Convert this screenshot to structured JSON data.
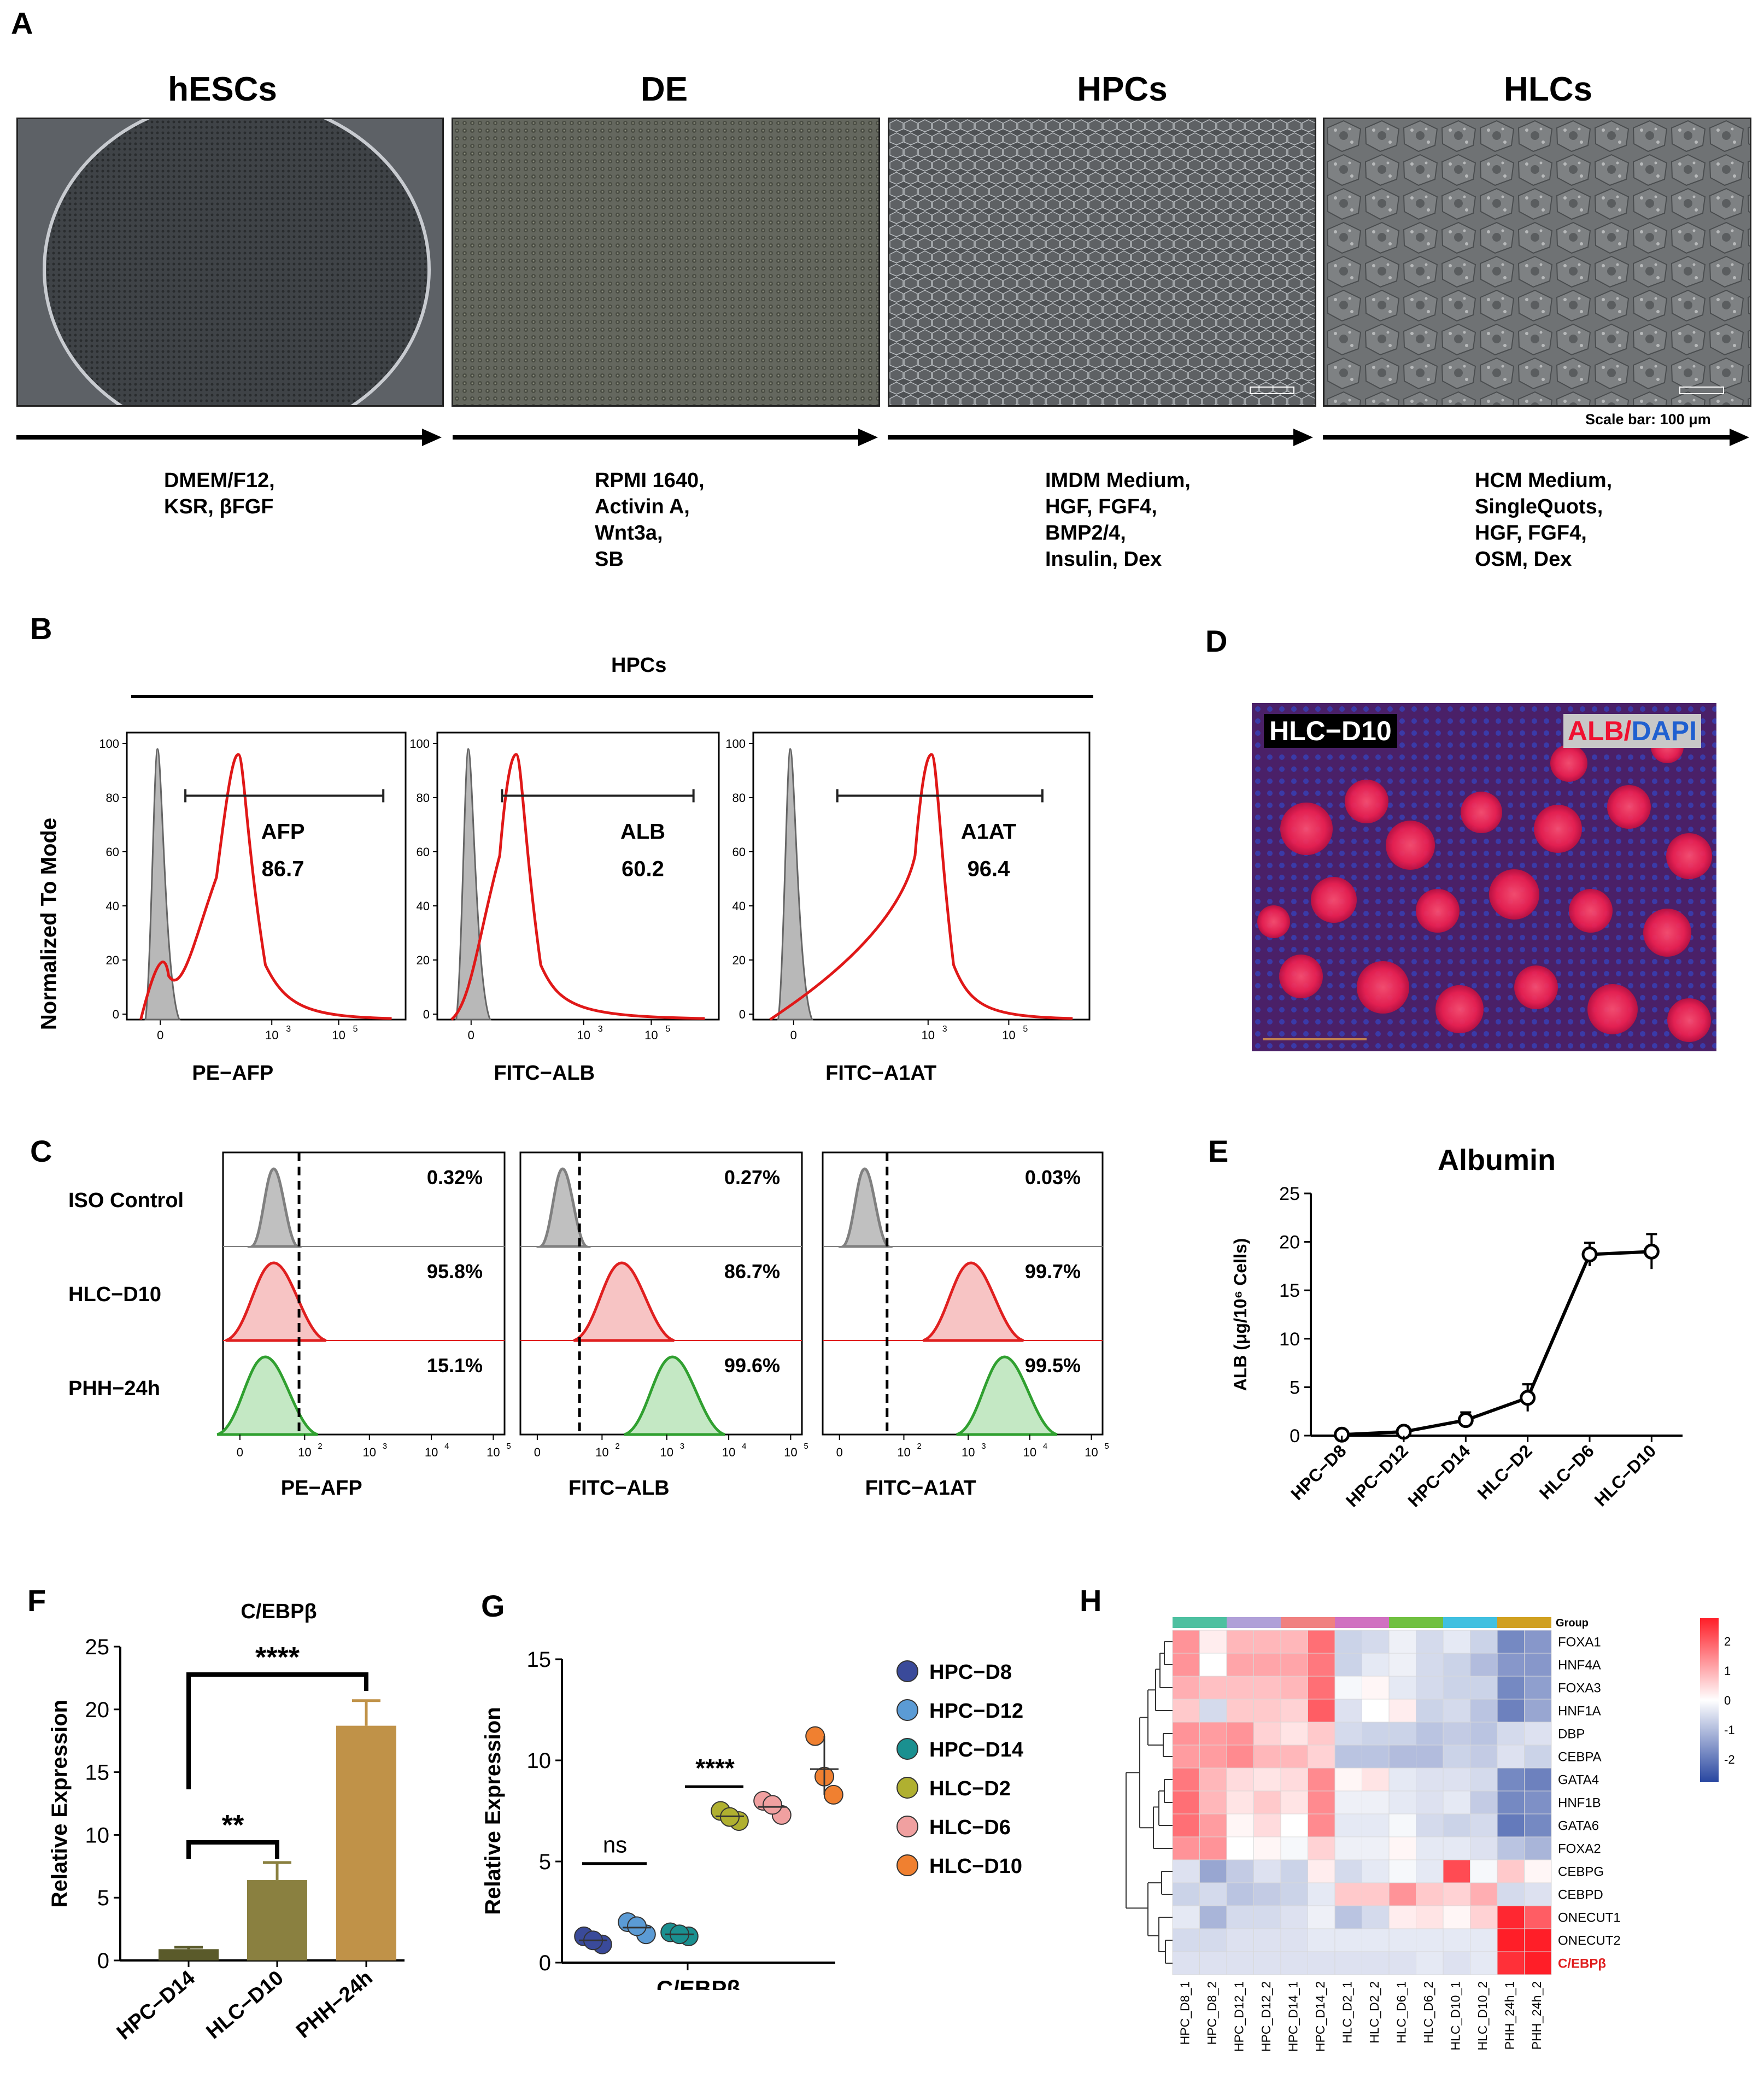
{
  "panel_a": {
    "label": "A",
    "stages": [
      {
        "title": "hESCs",
        "conditions": "DMEM/F12,\nKSR, βFGF",
        "colors": [
          "#4f5358",
          "#6a6e73",
          "#3e4246"
        ]
      },
      {
        "title": "DE",
        "conditions": "RPMI 1640,\nActivin A,\nWnt3a,\nSB",
        "colors": [
          "#5a5e5c",
          "#7b7f74",
          "#494b48"
        ]
      },
      {
        "title": "HPCs",
        "conditions": "IMDM Medium,\nHGF, FGF4,\nBMP2/4,\nInsulin, Dex",
        "colors": [
          "#55585a",
          "#8a8d8e",
          "#44474a"
        ]
      },
      {
        "title": "HLCs",
        "conditions": "HCM Medium,\nSingleQuots,\nHGF, FGF4,\nOSM, Dex",
        "colors": [
          "#6c6e70",
          "#9a9c9d",
          "#55585a"
        ]
      }
    ],
    "scale_bar": "Scale bar: 100 μm"
  },
  "panel_b": {
    "label": "B",
    "group": "HPCs",
    "ylabel": "Normalized To Mode",
    "y_ticks": [
      "0",
      "20",
      "40",
      "60",
      "80",
      "100"
    ],
    "x_ticks": [
      "0",
      "10",
      "10",
      "10"
    ],
    "x_exps": [
      "3",
      "5"
    ],
    "plots": [
      {
        "marker": "AFP",
        "value": "86.7",
        "xlabel": "PE−AFP"
      },
      {
        "marker": "ALB",
        "value": "60.2",
        "xlabel": "FITC−ALB"
      },
      {
        "marker": "A1AT",
        "value": "96.4",
        "xlabel": "FITC−A1AT"
      }
    ]
  },
  "panel_c": {
    "label": "C",
    "rows": [
      "ISO Control",
      "HLC−D10",
      "PHH−24h"
    ],
    "row_colors": [
      "#808080",
      "#e02020",
      "#30a030"
    ],
    "columns": [
      {
        "xlabel": "PE−AFP",
        "values": [
          "0.32%",
          "95.8%",
          "15.1%"
        ]
      },
      {
        "xlabel": "FITC−ALB",
        "values": [
          "0.27%",
          "86.7%",
          "99.6%"
        ]
      },
      {
        "xlabel": "FITC−A1AT",
        "values": [
          "0.03%",
          "99.7%",
          "99.5%"
        ]
      }
    ]
  },
  "panel_d": {
    "label": "D",
    "tag": "HLC−D10",
    "stain_alb": "ALB",
    "stain_sep": "/",
    "stain_dapi": "DAPI"
  },
  "panel_e": {
    "label": "E",
    "chart_data": {
      "type": "line",
      "title": "Albumin",
      "ylabel": "ALB (μg/10⁶ Cells)",
      "categories": [
        "HPC−D8",
        "HPC−D12",
        "HPC−D14",
        "HLC−D2",
        "HLC−D6",
        "HLC−D10"
      ],
      "values": [
        0.1,
        0.4,
        1.6,
        3.9,
        18.7,
        19.0
      ],
      "errors": [
        0.2,
        0.3,
        0.8,
        1.4,
        1.2,
        1.8
      ],
      "ylim": [
        0,
        25
      ],
      "y_ticks": [
        "0",
        "5",
        "10",
        "15",
        "20",
        "25"
      ]
    }
  },
  "panel_f": {
    "label": "F",
    "chart_data": {
      "type": "bar",
      "title": "C/EBPβ",
      "ylabel": "Relative  Expression",
      "categories": [
        "HPC−D14",
        "HLC−D10",
        "PHH−24h"
      ],
      "values": [
        0.9,
        6.4,
        18.7
      ],
      "errors": [
        0.15,
        1.4,
        2.0
      ],
      "colors": [
        "#5a5a2a",
        "#8a8040",
        "#c09248"
      ],
      "ylim": [
        0,
        25
      ],
      "y_ticks": [
        "0",
        "5",
        "10",
        "15",
        "20",
        "25"
      ],
      "significance": [
        {
          "between": [
            0,
            1
          ],
          "label": "**"
        },
        {
          "between": [
            0,
            2
          ],
          "label": "****"
        }
      ]
    }
  },
  "panel_g": {
    "label": "G",
    "chart_data": {
      "type": "scatter",
      "xlabel": "C/EBPβ",
      "ylabel": "Relative Expression",
      "ylim": [
        0,
        15
      ],
      "y_ticks": [
        "0",
        "5",
        "10",
        "15"
      ],
      "series": [
        {
          "name": "HPC−D8",
          "color": "#3a4a9a",
          "values": [
            1.3,
            0.9,
            1.1
          ]
        },
        {
          "name": "HPC−D12",
          "color": "#5b9bd5",
          "values": [
            2.0,
            1.4,
            1.8
          ]
        },
        {
          "name": "HPC−D14",
          "color": "#1a9090",
          "values": [
            1.5,
            1.3,
            1.4
          ]
        },
        {
          "name": "HLC−D2",
          "color": "#b0b030",
          "values": [
            7.5,
            7.0,
            7.2
          ]
        },
        {
          "name": "HLC−D6",
          "color": "#f0a0a0",
          "values": [
            8.0,
            7.3,
            7.8
          ]
        },
        {
          "name": "HLC−D10",
          "color": "#f08030",
          "values": [
            11.2,
            8.3,
            9.2
          ]
        }
      ],
      "significance": [
        {
          "label": "ns",
          "between": [
            0,
            1
          ]
        },
        {
          "label": "****",
          "between": [
            2,
            3
          ]
        }
      ]
    }
  },
  "panel_h": {
    "label": "H",
    "chart_data": {
      "type": "heatmap",
      "group_label": "Group",
      "group_colors": [
        "#4dc0a0",
        "#4dc0a0",
        "#b0a0d8",
        "#b0a0d8",
        "#f08080",
        "#f08080",
        "#d070c0",
        "#d070c0",
        "#70c040",
        "#70c040",
        "#40c0e0",
        "#40c0e0",
        "#d0a020",
        "#d0a020"
      ],
      "columns": [
        "HPC_D8_1",
        "HPC_D8_2",
        "HPC_D12_1",
        "HPC_D12_2",
        "HPC_D14_1",
        "HPC_D14_2",
        "HLC_D2_1",
        "HLC_D2_2",
        "HLC_D6_1",
        "HLC_D6_2",
        "HLC_D10_1",
        "HLC_D10_2",
        "PHH_24h_1",
        "PHH_24h_2"
      ],
      "rows": [
        "FOXA1",
        "HNF4A",
        "FOXA3",
        "HNF1A",
        "DBP",
        "CEBPA",
        "GATA4",
        "HNF1B",
        "GATA6",
        "FOXA2",
        "CEBPG",
        "CEBPD",
        "ONECUT1",
        "ONECUT2",
        "C/EBPβ"
      ],
      "highlight_row": "C/EBPβ",
      "highlight_color": "#e02020",
      "values": [
        [
          1.2,
          0.2,
          0.8,
          0.8,
          0.8,
          1.6,
          -0.6,
          -0.5,
          -0.2,
          -0.5,
          -0.3,
          -0.6,
          -1.6,
          -1.4
        ],
        [
          1.2,
          0.0,
          1.0,
          1.0,
          1.0,
          1.5,
          -0.6,
          -0.3,
          -0.2,
          -0.5,
          -0.6,
          -0.9,
          -1.4,
          -1.4
        ],
        [
          0.9,
          0.7,
          0.7,
          0.7,
          0.8,
          1.6,
          -0.1,
          0.1,
          -0.3,
          -0.5,
          -0.6,
          -0.6,
          -1.6,
          -1.3
        ],
        [
          0.6,
          -0.5,
          0.6,
          0.6,
          0.5,
          1.8,
          -0.4,
          0.0,
          0.2,
          -0.6,
          -0.5,
          -0.8,
          -1.7,
          -1.2
        ],
        [
          1.2,
          1.1,
          1.2,
          0.5,
          0.3,
          0.6,
          -0.5,
          -0.6,
          -0.6,
          -0.8,
          -0.7,
          -0.8,
          -0.5,
          -0.4
        ],
        [
          1.1,
          1.1,
          1.3,
          0.8,
          0.8,
          0.5,
          -0.8,
          -0.8,
          -0.9,
          -0.9,
          -0.6,
          -0.7,
          -0.4,
          -0.6
        ],
        [
          1.5,
          0.8,
          0.4,
          0.3,
          0.4,
          1.3,
          0.1,
          0.3,
          -0.3,
          -0.4,
          -0.4,
          -0.5,
          -1.6,
          -1.7
        ],
        [
          1.6,
          0.8,
          0.3,
          0.6,
          0.3,
          1.3,
          -0.2,
          -0.2,
          -0.3,
          -0.4,
          -0.3,
          -0.7,
          -1.6,
          -1.5
        ],
        [
          1.6,
          1.1,
          0.1,
          0.4,
          0.0,
          1.3,
          -0.3,
          -0.3,
          -0.1,
          -0.5,
          -0.6,
          -0.5,
          -1.8,
          -1.6
        ],
        [
          1.2,
          1.2,
          0.0,
          0.1,
          -0.1,
          0.5,
          -0.2,
          -0.2,
          0.1,
          -0.3,
          -0.3,
          -0.4,
          -0.8,
          -1.0
        ],
        [
          -0.4,
          -1.2,
          -0.7,
          -0.4,
          -0.6,
          0.2,
          -0.5,
          -0.3,
          -0.1,
          -0.3,
          2.0,
          -0.1,
          0.6,
          0.1
        ],
        [
          -0.6,
          -0.5,
          -0.8,
          -0.7,
          -0.6,
          -0.3,
          0.6,
          0.6,
          1.2,
          0.6,
          0.5,
          0.9,
          -0.5,
          -0.4
        ],
        [
          -0.3,
          -1.0,
          -0.5,
          -0.5,
          -0.4,
          -0.2,
          -0.8,
          -0.5,
          0.2,
          0.3,
          0.1,
          0.5,
          2.4,
          1.8
        ],
        [
          -0.5,
          -0.5,
          -0.4,
          -0.4,
          -0.4,
          -0.3,
          -0.3,
          -0.3,
          -0.3,
          -0.3,
          -0.3,
          -0.3,
          2.5,
          2.5
        ],
        [
          -0.4,
          -0.4,
          -0.4,
          -0.4,
          -0.4,
          -0.4,
          -0.4,
          -0.4,
          -0.4,
          -0.3,
          -0.4,
          -0.3,
          2.3,
          2.5
        ]
      ],
      "legend_ticks": [
        "2",
        "1",
        "0",
        "-1",
        "-2"
      ]
    }
  }
}
